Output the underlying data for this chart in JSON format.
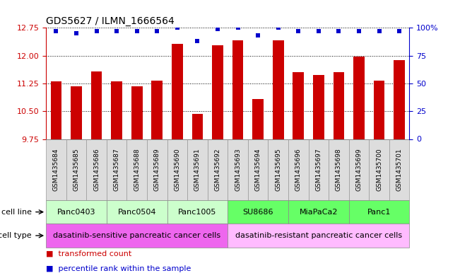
{
  "title": "GDS5627 / ILMN_1666564",
  "samples": [
    "GSM1435684",
    "GSM1435685",
    "GSM1435686",
    "GSM1435687",
    "GSM1435688",
    "GSM1435689",
    "GSM1435690",
    "GSM1435691",
    "GSM1435692",
    "GSM1435693",
    "GSM1435694",
    "GSM1435695",
    "GSM1435696",
    "GSM1435697",
    "GSM1435698",
    "GSM1435699",
    "GSM1435700",
    "GSM1435701"
  ],
  "bar_values": [
    11.3,
    11.18,
    11.58,
    11.3,
    11.18,
    11.32,
    12.32,
    10.42,
    12.28,
    12.42,
    10.82,
    12.42,
    11.55,
    11.48,
    11.55,
    11.98,
    11.32,
    11.88
  ],
  "percentile_values": [
    97,
    95,
    97,
    97,
    97,
    97,
    100,
    88,
    99,
    100,
    93,
    100,
    97,
    97,
    97,
    97,
    97,
    97
  ],
  "bar_color": "#cc0000",
  "percentile_color": "#0000cc",
  "ylim_left": [
    9.75,
    12.75
  ],
  "ylim_right": [
    0,
    100
  ],
  "yticks_left": [
    9.75,
    10.5,
    11.25,
    12.0,
    12.75
  ],
  "yticks_right": [
    0,
    25,
    50,
    75,
    100
  ],
  "cell_line_groups": [
    {
      "label": "Panc0403",
      "start": 0,
      "end": 2,
      "color": "#ccffcc"
    },
    {
      "label": "Panc0504",
      "start": 3,
      "end": 5,
      "color": "#ccffcc"
    },
    {
      "label": "Panc1005",
      "start": 6,
      "end": 8,
      "color": "#ccffcc"
    },
    {
      "label": "SU8686",
      "start": 9,
      "end": 11,
      "color": "#66ff66"
    },
    {
      "label": "MiaPaCa2",
      "start": 12,
      "end": 14,
      "color": "#66ff66"
    },
    {
      "label": "Panc1",
      "start": 15,
      "end": 17,
      "color": "#66ff66"
    }
  ],
  "cell_type_groups": [
    {
      "label": "dasatinib-sensitive pancreatic cancer cells",
      "start": 0,
      "end": 8,
      "color": "#ee66ee"
    },
    {
      "label": "dasatinib-resistant pancreatic cancer cells",
      "start": 9,
      "end": 17,
      "color": "#ffbbff"
    }
  ],
  "sample_box_color": "#dddddd",
  "bar_width": 0.55,
  "tick_label_fontsize": 6.5,
  "title_fontsize": 10,
  "annotation_fontsize": 8,
  "row_label_fontsize": 8,
  "legend_fontsize": 8
}
